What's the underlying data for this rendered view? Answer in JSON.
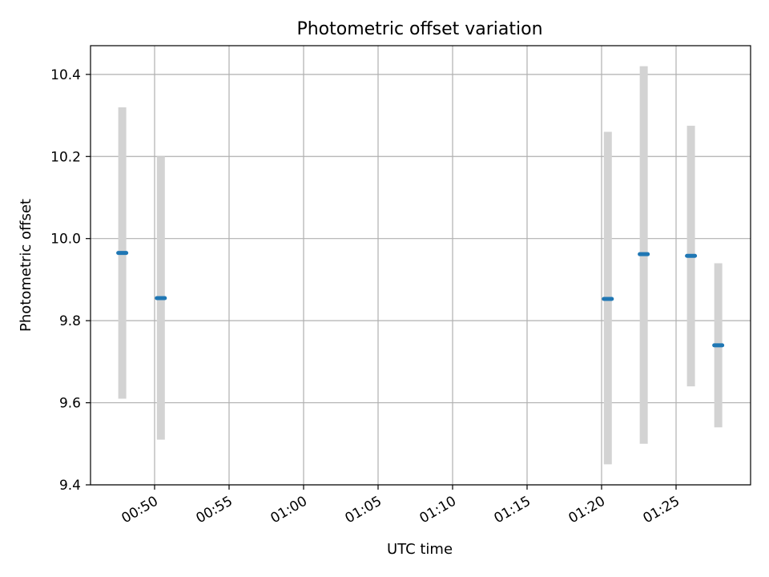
{
  "chart_data": {
    "type": "scatter",
    "title": "Photometric offset variation",
    "xlabel": "UTC time",
    "ylabel": "Photometric offset",
    "grid": true,
    "x_ticks": [
      "00:50",
      "00:55",
      "01:00",
      "01:05",
      "01:10",
      "01:15",
      "01:20",
      "01:25"
    ],
    "x_tick_minutes": [
      50,
      55,
      60,
      65,
      70,
      75,
      80,
      85
    ],
    "xlim_minutes": [
      45.7,
      90.0
    ],
    "y_ticks": [
      "9.4",
      "9.6",
      "9.8",
      "10.0",
      "10.2",
      "10.4"
    ],
    "ylim": [
      9.4,
      10.47
    ],
    "points": [
      {
        "time": "00:47:50",
        "t": 47.83,
        "value": 9.965,
        "low": 9.61,
        "high": 10.32
      },
      {
        "time": "00:50:25",
        "t": 50.42,
        "value": 9.855,
        "low": 9.51,
        "high": 10.2
      },
      {
        "time": "01:20:25",
        "t": 80.42,
        "value": 9.853,
        "low": 9.45,
        "high": 10.26
      },
      {
        "time": "01:22:50",
        "t": 82.83,
        "value": 9.962,
        "low": 9.5,
        "high": 10.42
      },
      {
        "time": "01:26:00",
        "t": 86.0,
        "value": 9.958,
        "low": 9.64,
        "high": 10.275
      },
      {
        "time": "01:27:50",
        "t": 87.83,
        "value": 9.74,
        "low": 9.54,
        "high": 9.94
      }
    ],
    "colors": {
      "marker": "#1f77b4",
      "errorbar": "#d3d3d3",
      "grid": "#b0b0b0"
    }
  }
}
